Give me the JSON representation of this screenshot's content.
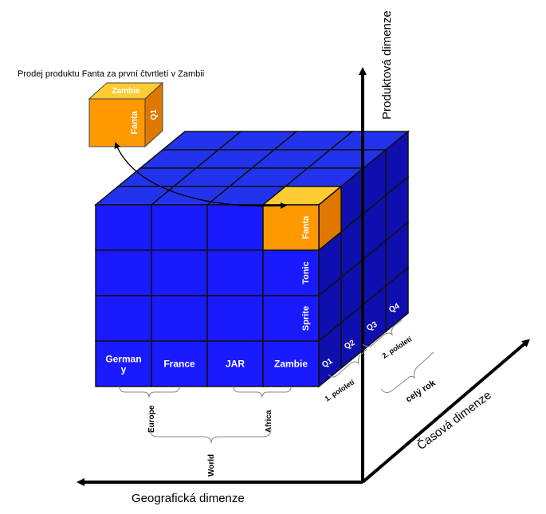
{
  "caption": "Prodej produktu Fanta za první čtvrtletí v Zambii",
  "detail_cube": {
    "top": "Zambie",
    "front": "Fanta",
    "side": "Q1"
  },
  "axes": {
    "product": "Produktová dimenze",
    "time": "Časová dimenze",
    "geo": "Geografická dimenze"
  },
  "countries": [
    "German y",
    "France",
    "JAR",
    "Zambie"
  ],
  "products": [
    "Fanta",
    "Tonic",
    "Sprite"
  ],
  "quarters": [
    "Q1",
    "Q2",
    "Q3",
    "Q4"
  ],
  "time_groups": {
    "half1": "1. pololetí",
    "half2": "2. pololetí",
    "year": "celý rok"
  },
  "geo_groups": {
    "europe": "Europe",
    "africa": "Africa",
    "world": "World"
  },
  "colors": {
    "cube": "#1a1aff",
    "cube_top": "#2233ee",
    "cube_side": "#0f0fb0",
    "highlight": "#ff9900",
    "highlight_top": "#ffcc33",
    "highlight_side": "#e07800"
  }
}
